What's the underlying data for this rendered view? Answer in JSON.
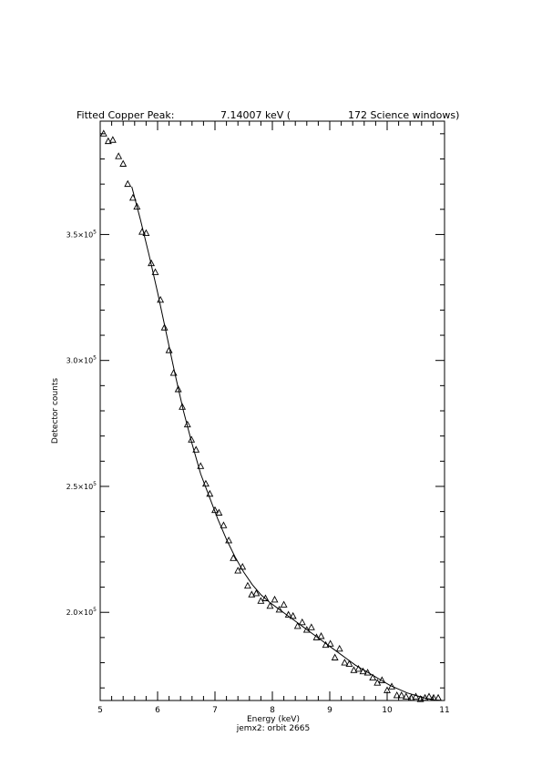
{
  "title_parts": [
    "Fitted Copper Peak:",
    "7.14007 keV (",
    "172 Science windows)"
  ],
  "footer": "jemx2: orbit 2665",
  "chart_data": {
    "type": "scatter",
    "xlabel": "Energy (keV)",
    "ylabel": "Detector counts",
    "xlim": [
      5,
      11
    ],
    "ylim": [
      165000,
      395000
    ],
    "x_tick_labels": [
      "5",
      "6",
      "7",
      "8",
      "9",
      "10",
      "11"
    ],
    "y_ticks": [
      {
        "value": 200000,
        "mantissa": "2.0",
        "exp": "5"
      },
      {
        "value": 250000,
        "mantissa": "2.5",
        "exp": "5"
      },
      {
        "value": 300000,
        "mantissa": "3.0",
        "exp": "5"
      },
      {
        "value": 350000,
        "mantissa": "3.5",
        "exp": "5"
      }
    ],
    "series": [
      {
        "marker": "triangle",
        "points": [
          [
            5.06,
            390000
          ],
          [
            5.14,
            387000
          ],
          [
            5.22,
            387500
          ],
          [
            5.32,
            381000
          ],
          [
            5.4,
            378000
          ],
          [
            5.48,
            370000
          ],
          [
            5.57,
            364500
          ],
          [
            5.64,
            361000
          ],
          [
            5.73,
            351000
          ],
          [
            5.8,
            350500
          ],
          [
            5.89,
            338500
          ],
          [
            5.96,
            335000
          ],
          [
            6.05,
            324000
          ],
          [
            6.12,
            313000
          ],
          [
            6.2,
            304000
          ],
          [
            6.28,
            295000
          ],
          [
            6.36,
            288500
          ],
          [
            6.43,
            281500
          ],
          [
            6.52,
            274500
          ],
          [
            6.59,
            268500
          ],
          [
            6.67,
            264500
          ],
          [
            6.75,
            258000
          ],
          [
            6.84,
            251000
          ],
          [
            6.91,
            247000
          ],
          [
            7.0,
            240500
          ],
          [
            7.07,
            239500
          ],
          [
            7.15,
            234500
          ],
          [
            7.24,
            228500
          ],
          [
            7.32,
            221500
          ],
          [
            7.4,
            216500
          ],
          [
            7.48,
            218000
          ],
          [
            7.57,
            210500
          ],
          [
            7.64,
            207000
          ],
          [
            7.72,
            207500
          ],
          [
            7.8,
            204500
          ],
          [
            7.88,
            205500
          ],
          [
            7.96,
            202500
          ],
          [
            8.04,
            205000
          ],
          [
            8.12,
            201000
          ],
          [
            8.2,
            203000
          ],
          [
            8.28,
            199000
          ],
          [
            8.36,
            198500
          ],
          [
            8.44,
            194500
          ],
          [
            8.52,
            196000
          ],
          [
            8.6,
            193000
          ],
          [
            8.68,
            194000
          ],
          [
            8.77,
            190000
          ],
          [
            8.85,
            190500
          ],
          [
            8.93,
            187000
          ],
          [
            9.01,
            187500
          ],
          [
            9.09,
            182000
          ],
          [
            9.17,
            185500
          ],
          [
            9.26,
            180000
          ],
          [
            9.34,
            179500
          ],
          [
            9.42,
            177000
          ],
          [
            9.5,
            177500
          ],
          [
            9.58,
            176500
          ],
          [
            9.66,
            176000
          ],
          [
            9.75,
            174000
          ],
          [
            9.83,
            172000
          ],
          [
            9.91,
            173000
          ],
          [
            10.0,
            169000
          ],
          [
            10.08,
            170500
          ],
          [
            10.17,
            167000
          ],
          [
            10.25,
            167000
          ],
          [
            10.33,
            166500
          ],
          [
            10.42,
            166000
          ],
          [
            10.5,
            166500
          ],
          [
            10.58,
            165500
          ],
          [
            10.66,
            166000
          ],
          [
            10.73,
            166500
          ],
          [
            10.81,
            166000
          ],
          [
            10.89,
            166000
          ]
        ]
      },
      {
        "name": "fit",
        "type": "line",
        "points": [
          [
            5.55,
            369000
          ],
          [
            5.7,
            356000
          ],
          [
            5.85,
            342000
          ],
          [
            6.0,
            327000
          ],
          [
            6.15,
            311000
          ],
          [
            6.3,
            295000
          ],
          [
            6.45,
            280000
          ],
          [
            6.6,
            267000
          ],
          [
            6.75,
            255000
          ],
          [
            6.9,
            246000
          ],
          [
            7.05,
            237000
          ],
          [
            7.2,
            229000
          ],
          [
            7.35,
            222000
          ],
          [
            7.5,
            216000
          ],
          [
            7.65,
            211000
          ],
          [
            7.8,
            207000
          ],
          [
            7.95,
            204000
          ],
          [
            8.1,
            201500
          ],
          [
            8.25,
            199000
          ],
          [
            8.4,
            196500
          ],
          [
            8.55,
            194000
          ],
          [
            8.7,
            191500
          ],
          [
            8.85,
            189000
          ],
          [
            9.0,
            186500
          ],
          [
            9.15,
            184000
          ],
          [
            9.3,
            181500
          ],
          [
            9.45,
            179000
          ],
          [
            9.6,
            177000
          ],
          [
            9.75,
            175000
          ],
          [
            9.9,
            173000
          ],
          [
            10.05,
            171000
          ],
          [
            10.2,
            169500
          ],
          [
            10.35,
            168000
          ],
          [
            10.5,
            167000
          ],
          [
            10.65,
            166000
          ],
          [
            10.8,
            165300
          ],
          [
            10.95,
            165000
          ]
        ]
      }
    ]
  }
}
